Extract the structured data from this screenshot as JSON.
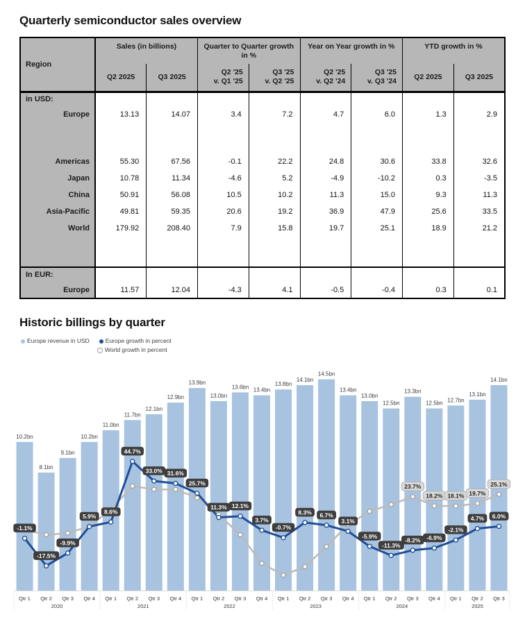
{
  "table_section": {
    "title": "Quarterly semiconductor sales overview",
    "table": {
      "region_header": "Region",
      "groups": [
        {
          "label": "Sales (in billions)",
          "sub": [
            [
              "Q2 2025"
            ],
            [
              "Q3 2025"
            ]
          ],
          "sub_align": "center"
        },
        {
          "label": "Quarter to Quarter growth in %",
          "sub": [
            [
              "Q2 '25",
              "v. Q1 '25"
            ],
            [
              "Q3 '25",
              "v. Q2 '25"
            ]
          ],
          "sub_align": "right"
        },
        {
          "label": "Year on Year growth in %",
          "sub": [
            [
              "Q2 '25",
              "v. Q2 '24"
            ],
            [
              "Q3 '25",
              "v. Q3 '24"
            ]
          ],
          "sub_align": "right"
        },
        {
          "label": "YTD growth in %",
          "sub": [
            [
              "Q2 2025"
            ],
            [
              "Q3 2025"
            ]
          ],
          "sub_align": "center"
        }
      ],
      "rows": [
        {
          "type": "section",
          "label": "in USD:"
        },
        {
          "type": "data",
          "label": "Europe",
          "values": [
            "13.13",
            "14.07",
            "3.4",
            "7.2",
            "4.7",
            "6.0",
            "1.3",
            "2.9"
          ]
        },
        {
          "type": "spacer"
        },
        {
          "type": "data",
          "label": "Americas",
          "values": [
            "55.30",
            "67.56",
            "-0.1",
            "22.2",
            "24.8",
            "30.6",
            "33.8",
            "32.6"
          ]
        },
        {
          "type": "data",
          "label": "Japan",
          "values": [
            "10.78",
            "11.34",
            "-4.6",
            "5.2",
            "-4.9",
            "-10.2",
            "0.3",
            "-3.5"
          ]
        },
        {
          "type": "data",
          "label": "China",
          "values": [
            "50.91",
            "56.08",
            "10.5",
            "10.2",
            "11.3",
            "15.0",
            "9.3",
            "11.3"
          ]
        },
        {
          "type": "data",
          "label": "Asia-Pacific",
          "values": [
            "49.81",
            "59.35",
            "20.6",
            "19.2",
            "36.9",
            "47.9",
            "25.6",
            "33.5"
          ]
        },
        {
          "type": "data",
          "label": "World",
          "values": [
            "179.92",
            "208.40",
            "7.9",
            "15.8",
            "19.7",
            "25.1",
            "18.9",
            "21.2"
          ]
        },
        {
          "type": "spacer"
        },
        {
          "type": "section",
          "label": "In EUR:",
          "divider": true
        },
        {
          "type": "data",
          "label": "Europe",
          "values": [
            "11.57",
            "12.04",
            "-4.3",
            "4.1",
            "-0.5",
            "-0.4",
            "0.3",
            "0.1"
          ]
        }
      ]
    }
  },
  "chart_section": {
    "title": "Historic billings by quarter",
    "legend": [
      {
        "label": "Europe revenue in USD",
        "marker": "#a7c3e0"
      },
      {
        "label": "Europe growth in percent",
        "marker": "#1f4e96"
      },
      {
        "label": "World growth in percent",
        "marker": "#ffffff",
        "marker_border": "#9e9c9a"
      }
    ]
  },
  "colors": {
    "bar": "#a7c3e0",
    "bar_label": "#3c3c3c",
    "europe_line": "#1f4e96",
    "world_line": "#bdbab8",
    "world_marker_border": "#9e9c9a",
    "badge_dark_bg": "#3e3e3e",
    "badge_dark_text": "#ffffff",
    "badge_light_bg": "#d9d9d9",
    "badge_light_border": "#a9a9a9",
    "badge_light_text": "#222222",
    "axis_text": "#333333",
    "separator": "#c9c9c9",
    "baseline": "#dddddd",
    "table_header_bg": "#b7b7b7"
  },
  "chart_data": {
    "type": "bar+line",
    "title": "Historic billings by quarter",
    "years": [
      {
        "label": "2020",
        "quarters": [
          "Qtr 1",
          "Qtr 2",
          "Qtr 3",
          "Qtr 4"
        ]
      },
      {
        "label": "2021",
        "quarters": [
          "Qtr 1",
          "Qtr 2",
          "Qtr 3",
          "Qtr 4"
        ]
      },
      {
        "label": "2022",
        "quarters": [
          "Qtr 1",
          "Qtr 2",
          "Qtr 3",
          "Qtr 4"
        ]
      },
      {
        "label": "2023",
        "quarters": [
          "Qtr 1",
          "Qtr 2",
          "Qtr 3",
          "Qtr 4"
        ]
      },
      {
        "label": "2024",
        "quarters": [
          "Qtr 1",
          "Qtr 2",
          "Qtr 3",
          "Qtr 4"
        ]
      },
      {
        "label": "2025",
        "quarters": [
          "Qtr 1",
          "Qtr 2",
          "Qtr 3"
        ]
      }
    ],
    "series": [
      {
        "name": "Europe revenue in USD",
        "type": "bar",
        "unit": "bn USD",
        "values": [
          10.2,
          8.1,
          9.1,
          10.2,
          11.0,
          11.7,
          12.1,
          12.9,
          13.9,
          13.0,
          13.6,
          13.4,
          13.8,
          14.1,
          14.5,
          13.4,
          13.0,
          12.5,
          13.3,
          12.5,
          12.7,
          13.1,
          14.1
        ],
        "labels": [
          "10.2bn",
          "8.1bn",
          "9.1bn",
          "10.2bn",
          "11.0bn",
          "11.7bn",
          "12.1bn",
          "12.9bn",
          "13.9bn",
          "13.0bn",
          "13.6bn",
          "13.4bn",
          "13.8bn",
          "14.1bn",
          "14.5bn",
          "13.4bn",
          "13.0bn",
          "12.5bn",
          "13.3bn",
          "12.5bn",
          "12.7bn",
          "13.1bn",
          "14.1bn"
        ]
      },
      {
        "name": "Europe growth in percent",
        "type": "line",
        "unit": "%",
        "label_style": "dark",
        "values": [
          -1.1,
          -17.5,
          -9.9,
          5.9,
          8.6,
          44.7,
          33.0,
          31.6,
          25.7,
          11.3,
          12.1,
          3.7,
          -0.7,
          8.3,
          6.7,
          3.1,
          -5.9,
          -11.3,
          -8.2,
          -6.9,
          -2.1,
          4.7,
          6.0
        ],
        "labels": [
          "-1.1%",
          "-17.5%",
          "-9.9%",
          "5.9%",
          "8.6%",
          "44.7%",
          "33.0%",
          "31.6%",
          "25.7%",
          "11.3%",
          "12.1%",
          "3.7%",
          "-0.7%",
          "8.3%",
          "6.7%",
          "3.1%",
          "-5.9%",
          "-11.3%",
          "-8.2%",
          "-6.9%",
          "-2.1%",
          "4.7%",
          "6.0%"
        ]
      },
      {
        "name": "World growth in percent",
        "type": "line",
        "unit": "%",
        "label_style": "light",
        "values": [
          4,
          1,
          2,
          6,
          16,
          30,
          28,
          28,
          23,
          13,
          1,
          -16,
          -23,
          -18,
          -6,
          7,
          15,
          19,
          23.7,
          18.2,
          18.1,
          19.7,
          25.1
        ],
        "labels": [
          null,
          null,
          null,
          null,
          null,
          null,
          null,
          null,
          null,
          null,
          null,
          null,
          null,
          null,
          null,
          null,
          null,
          null,
          "23.7%",
          "18.2%",
          "18.1%",
          "19.7%",
          "25.1%"
        ]
      }
    ],
    "ylim_bars": [
      0,
      15
    ],
    "ylim_growth": [
      -25,
      50
    ],
    "grid": false,
    "legend_position": "top-left"
  }
}
